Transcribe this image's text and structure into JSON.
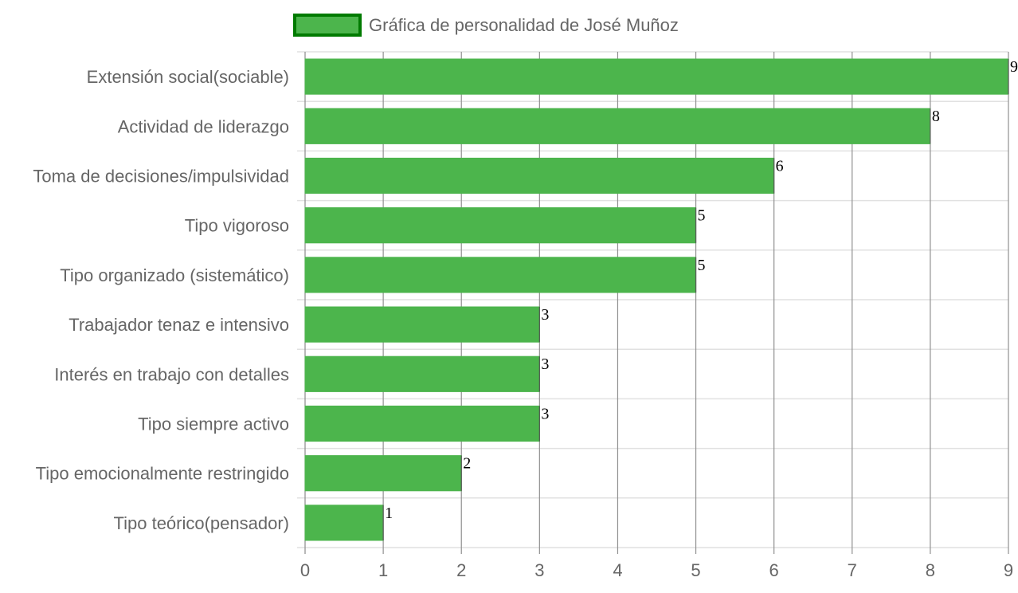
{
  "chart_data": {
    "type": "bar",
    "orientation": "horizontal",
    "categories": [
      "Extensión social(sociable)",
      "Actividad de liderazgo",
      "Toma de decisiones/impulsividad",
      "Tipo vigoroso",
      "Tipo organizado (sistemático)",
      "Trabajador tenaz e intensivo",
      "Interés en trabajo con detalles",
      "Tipo siempre activo",
      "Tipo emocionalmente restringido",
      "Tipo teórico(pensador)"
    ],
    "series": [
      {
        "name": "Gráfica de personalidad de José Muñoz",
        "values": [
          9,
          8,
          6,
          5,
          5,
          3,
          3,
          3,
          2,
          1
        ],
        "color": "#4cb54c",
        "border_color": "#007a00"
      }
    ],
    "xlim": [
      0,
      9
    ],
    "x_ticks": [
      "0",
      "1",
      "2",
      "3",
      "4",
      "5",
      "6",
      "7",
      "8",
      "9"
    ],
    "grid": true,
    "legend_position": "top",
    "data_labels": [
      "9",
      "8",
      "6",
      "5",
      "5",
      "3",
      "3",
      "3",
      "2",
      "1"
    ]
  }
}
